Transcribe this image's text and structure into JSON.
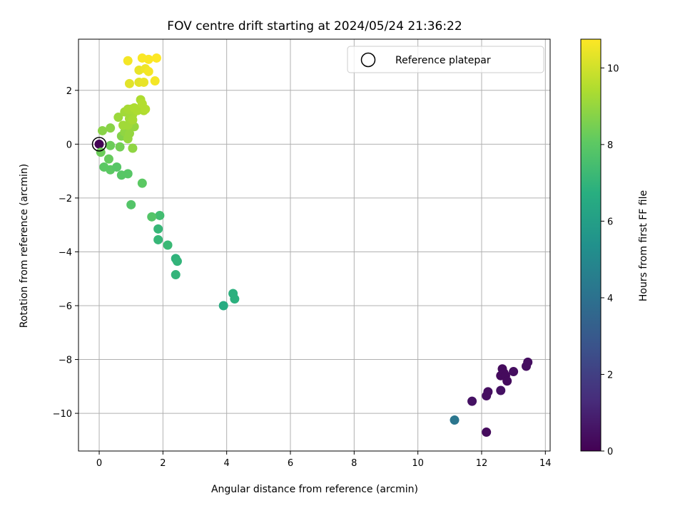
{
  "chart_data": {
    "type": "scatter",
    "title": "FOV centre drift starting at 2024/05/24 21:36:22",
    "xlabel": "Angular distance from reference (arcmin)",
    "ylabel": "Rotation from reference (arcmin)",
    "xlim": [
      -0.65,
      14.15
    ],
    "ylim": [
      -11.4,
      3.9
    ],
    "xticks": [
      0,
      2,
      4,
      6,
      8,
      10,
      12,
      14
    ],
    "yticks": [
      -10,
      -8,
      -6,
      -4,
      -2,
      0,
      2
    ],
    "grid": true,
    "legend": {
      "position": "top-right",
      "entries": [
        "Reference platepar"
      ]
    },
    "colorbar": {
      "label": "Hours from first FF file",
      "range": [
        0,
        10.75
      ],
      "ticks": [
        0,
        2,
        4,
        6,
        8,
        10
      ],
      "colormap": "viridis"
    },
    "reference_point": {
      "x": 0,
      "y": 0
    },
    "points": [
      {
        "x": 0.0,
        "y": 0.0,
        "c": 0.05
      },
      {
        "x": 12.15,
        "y": -10.7,
        "c": 0.3
      },
      {
        "x": 12.15,
        "y": -9.35,
        "c": 0.4
      },
      {
        "x": 12.2,
        "y": -9.2,
        "c": 0.4
      },
      {
        "x": 11.7,
        "y": -9.55,
        "c": 0.5
      },
      {
        "x": 12.6,
        "y": -9.15,
        "c": 0.5
      },
      {
        "x": 12.6,
        "y": -8.6,
        "c": 0.3
      },
      {
        "x": 12.65,
        "y": -8.35,
        "c": 0.3
      },
      {
        "x": 12.7,
        "y": -8.5,
        "c": 0.3
      },
      {
        "x": 12.75,
        "y": -8.6,
        "c": 0.3
      },
      {
        "x": 12.8,
        "y": -8.8,
        "c": 0.3
      },
      {
        "x": 13.0,
        "y": -8.45,
        "c": 0.4
      },
      {
        "x": 13.4,
        "y": -8.25,
        "c": 0.4
      },
      {
        "x": 13.45,
        "y": -8.1,
        "c": 0.4
      },
      {
        "x": 11.15,
        "y": -10.25,
        "c": 4.2
      },
      {
        "x": 3.9,
        "y": -6.0,
        "c": 6.6
      },
      {
        "x": 4.2,
        "y": -5.55,
        "c": 6.8
      },
      {
        "x": 4.25,
        "y": -5.75,
        "c": 6.8
      },
      {
        "x": 2.4,
        "y": -4.25,
        "c": 6.9
      },
      {
        "x": 2.45,
        "y": -4.35,
        "c": 7.0
      },
      {
        "x": 2.4,
        "y": -4.85,
        "c": 7.0
      },
      {
        "x": 2.15,
        "y": -3.75,
        "c": 7.2
      },
      {
        "x": 1.85,
        "y": -3.15,
        "c": 7.1
      },
      {
        "x": 1.85,
        "y": -3.55,
        "c": 7.1
      },
      {
        "x": 1.9,
        "y": -2.65,
        "c": 7.4
      },
      {
        "x": 1.65,
        "y": -2.7,
        "c": 7.8
      },
      {
        "x": 1.0,
        "y": -2.25,
        "c": 7.8
      },
      {
        "x": 1.35,
        "y": -1.45,
        "c": 8.0
      },
      {
        "x": 0.9,
        "y": -1.1,
        "c": 7.9
      },
      {
        "x": 0.7,
        "y": -1.15,
        "c": 7.9
      },
      {
        "x": 0.35,
        "y": -0.95,
        "c": 8.0
      },
      {
        "x": 0.55,
        "y": -0.85,
        "c": 7.9
      },
      {
        "x": 0.15,
        "y": -0.85,
        "c": 8.0
      },
      {
        "x": 0.3,
        "y": -0.55,
        "c": 8.2
      },
      {
        "x": 0.05,
        "y": -0.3,
        "c": 8.3
      },
      {
        "x": 0.35,
        "y": -0.05,
        "c": 8.3
      },
      {
        "x": 0.65,
        "y": -0.1,
        "c": 8.4
      },
      {
        "x": 1.05,
        "y": -0.15,
        "c": 8.9
      },
      {
        "x": 0.1,
        "y": 0.5,
        "c": 8.8
      },
      {
        "x": 0.35,
        "y": 0.6,
        "c": 8.8
      },
      {
        "x": 0.7,
        "y": 0.3,
        "c": 8.7
      },
      {
        "x": 0.8,
        "y": 0.45,
        "c": 8.9
      },
      {
        "x": 0.9,
        "y": 0.2,
        "c": 9.0
      },
      {
        "x": 0.95,
        "y": 0.4,
        "c": 9.0
      },
      {
        "x": 1.1,
        "y": 0.65,
        "c": 9.0
      },
      {
        "x": 0.75,
        "y": 0.7,
        "c": 9.2
      },
      {
        "x": 0.9,
        "y": 0.7,
        "c": 9.2
      },
      {
        "x": 0.6,
        "y": 1.0,
        "c": 9.1
      },
      {
        "x": 0.8,
        "y": 1.2,
        "c": 9.2
      },
      {
        "x": 0.9,
        "y": 1.3,
        "c": 9.3
      },
      {
        "x": 1.0,
        "y": 1.3,
        "c": 9.3
      },
      {
        "x": 1.05,
        "y": 1.1,
        "c": 9.3
      },
      {
        "x": 1.1,
        "y": 1.35,
        "c": 9.4
      },
      {
        "x": 1.2,
        "y": 1.25,
        "c": 9.4
      },
      {
        "x": 1.3,
        "y": 1.3,
        "c": 9.4
      },
      {
        "x": 1.4,
        "y": 1.25,
        "c": 9.4
      },
      {
        "x": 1.45,
        "y": 1.3,
        "c": 9.5
      },
      {
        "x": 1.3,
        "y": 1.65,
        "c": 9.4
      },
      {
        "x": 1.35,
        "y": 1.5,
        "c": 9.5
      },
      {
        "x": 0.95,
        "y": 0.95,
        "c": 9.2
      },
      {
        "x": 1.05,
        "y": 0.9,
        "c": 9.3
      },
      {
        "x": 0.95,
        "y": 2.25,
        "c": 10.3
      },
      {
        "x": 1.25,
        "y": 2.3,
        "c": 10.3
      },
      {
        "x": 1.4,
        "y": 2.3,
        "c": 10.4
      },
      {
        "x": 1.75,
        "y": 2.35,
        "c": 10.6
      },
      {
        "x": 1.25,
        "y": 2.75,
        "c": 10.4
      },
      {
        "x": 1.45,
        "y": 2.8,
        "c": 10.5
      },
      {
        "x": 1.55,
        "y": 2.7,
        "c": 10.6
      },
      {
        "x": 0.9,
        "y": 3.1,
        "c": 10.6
      },
      {
        "x": 1.35,
        "y": 3.2,
        "c": 10.7
      },
      {
        "x": 1.55,
        "y": 3.15,
        "c": 10.7
      },
      {
        "x": 1.8,
        "y": 3.2,
        "c": 10.75
      }
    ]
  }
}
